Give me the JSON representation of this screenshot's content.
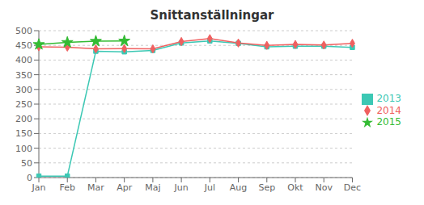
{
  "chart_data": {
    "type": "line",
    "title": "Snittanställningar",
    "categories": [
      "Jan",
      "Feb",
      "Mar",
      "Apr",
      "Maj",
      "Jun",
      "Jul",
      "Aug",
      "Sep",
      "Okt",
      "Nov",
      "Dec"
    ],
    "series": [
      {
        "name": "2013",
        "color": "#3CC8B4",
        "marker": "square",
        "values": [
          5,
          5,
          430,
          428,
          433,
          458,
          465,
          457,
          445,
          447,
          447,
          443
        ]
      },
      {
        "name": "2014",
        "color": "#F06060",
        "marker": "diamond",
        "values": [
          445,
          444,
          438,
          439,
          438,
          463,
          473,
          458,
          450,
          453,
          451,
          457
        ]
      },
      {
        "name": "2015",
        "color": "#33BB33",
        "marker": "star",
        "values": [
          453,
          460,
          464,
          465,
          null,
          null,
          null,
          null,
          null,
          null,
          null,
          null
        ]
      }
    ],
    "ylim": [
      0,
      500
    ],
    "yticks": [
      0,
      50,
      100,
      150,
      200,
      250,
      300,
      350,
      400,
      450,
      500
    ],
    "grid": true,
    "legend": "right"
  }
}
